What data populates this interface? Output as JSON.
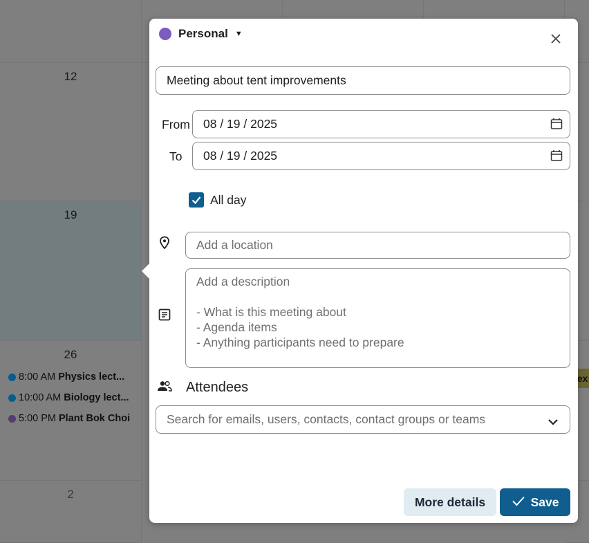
{
  "calendar": {
    "days": [
      "12",
      "19",
      "26",
      "2"
    ],
    "events": [
      {
        "time": "8:00 AM",
        "title": "Physics lect...",
        "color": "#0b5b8a"
      },
      {
        "time": "10:00 AM",
        "title": "Biology lect...",
        "color": "#0b5b8a"
      },
      {
        "time": "5:00 PM",
        "title": "Plant Bok Choi",
        "color": "#4f3d73"
      }
    ],
    "partial_event": "lex"
  },
  "popup": {
    "calendar_name": "Personal",
    "calendar_color": "#7c5cbf",
    "title_value": "Meeting about tent improvements",
    "from_label": "From",
    "from_value": "08 / 19 / 2025",
    "to_label": "To",
    "to_value": "08 / 19 / 2025",
    "all_day_label": "All day",
    "all_day_checked": true,
    "location_placeholder": "Add a location",
    "description_placeholder": "Add a description\n\n- What is this meeting about\n- Agenda items\n- Anything participants need to prepare",
    "attendees_label": "Attendees",
    "attendees_placeholder": "Search for emails, users, contacts, contact groups or teams",
    "more_details_label": "More details",
    "save_label": "Save",
    "accent": "#0f5e8f"
  }
}
